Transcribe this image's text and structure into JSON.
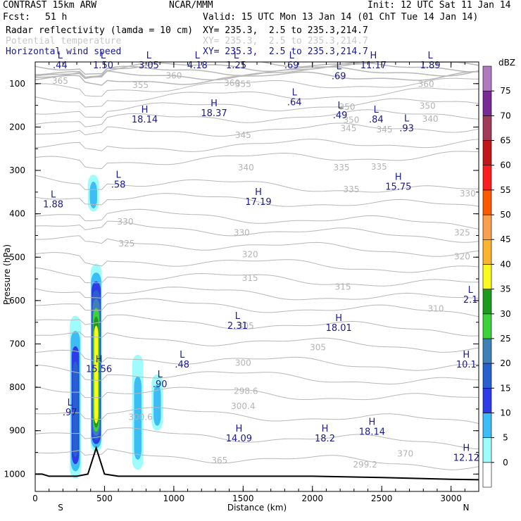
{
  "header": {
    "model": "CONTRAST 15km ARW",
    "org": "NCAR/MMM",
    "init": "Init: 12 UTC Sat 11 Jan 14",
    "fcst_label": "Fcst:",
    "fcst_value": "51 h",
    "valid": "Valid: 15 UTC Mon 13 Jan 14 (01 ChT Tue 14 Jan 14)",
    "fields": [
      {
        "name": "Radar reflectivity (lamda = 10 cm)",
        "xy": "XY= 235.3,  2.5 to 235.3,214.7",
        "color": "#000000"
      },
      {
        "name": "Potential temperature",
        "xy": "XY= 235.3,  2.5 to 235.3,214.7",
        "color": "#c8c8c8"
      },
      {
        "name": "Horizontal wind speed",
        "xy": "XY= 235.3,  2.5 to 235.3,214.7",
        "color": "#1a1a8c"
      }
    ]
  },
  "chart_data": {
    "type": "cross-section",
    "ylabel": "Pressure (hPa)",
    "xlabel": "Distance (km)",
    "xlim": [
      0,
      3200
    ],
    "ylim": [
      1040,
      50
    ],
    "x_ticks": [
      "0",
      "500",
      "1000",
      "1500",
      "2000",
      "2500",
      "3000"
    ],
    "y_ticks": [
      "100",
      "200",
      "300",
      "400",
      "500",
      "600",
      "700",
      "800",
      "900",
      "1000"
    ],
    "x_end_labels": {
      "left": "S",
      "right": "N"
    },
    "colorbar": {
      "unit": "dBZ",
      "levels": [
        "0",
        "5",
        "10",
        "15",
        "20",
        "25",
        "30",
        "35",
        "40",
        "45",
        "50",
        "55",
        "60",
        "65",
        "70",
        "75"
      ],
      "colors": [
        "#ffffff",
        "#9ffcfc",
        "#3cbdf5",
        "#2d3ce6",
        "#2860d0",
        "#4080b8",
        "#3cd23c",
        "#1e9b1e",
        "#fafa1e",
        "#fab432",
        "#f8a050",
        "#fc5a00",
        "#fa1e1e",
        "#c01818",
        "#a03c5a",
        "#7a2a96",
        "#b27abe"
      ]
    },
    "theta_contour_labels": [
      "365",
      "360",
      "360",
      "360",
      "355",
      "355",
      "350",
      "350",
      "350",
      "345",
      "345",
      "345",
      "340",
      "340",
      "335",
      "335",
      "335",
      "330",
      "330",
      "330",
      "325",
      "325",
      "320",
      "320",
      "315",
      "315",
      "310",
      "305",
      "305",
      "300",
      "298.6",
      "300.6",
      "300.4",
      "299.2",
      "370",
      "365"
    ],
    "wind_extrema": [
      {
        "type": "L",
        "value": ".44",
        "x": 180,
        "p": 55
      },
      {
        "type": "L",
        "value": "1.50",
        "x": 490,
        "p": 55
      },
      {
        "type": "L",
        "value": "3.05",
        "x": 820,
        "p": 55
      },
      {
        "type": "L",
        "value": "4.18",
        "x": 1170,
        "p": 55
      },
      {
        "type": "L",
        "value": "1.25",
        "x": 1450,
        "p": 55
      },
      {
        "type": "L",
        "value": ".69",
        "x": 1850,
        "p": 55
      },
      {
        "type": "L",
        "value": ".69",
        "x": 2190,
        "p": 80
      },
      {
        "type": "H",
        "value": "11.17",
        "x": 2440,
        "p": 55
      },
      {
        "type": "L",
        "value": "1.89",
        "x": 2850,
        "p": 55
      },
      {
        "type": "L",
        "value": ".64",
        "x": 1870,
        "p": 140
      },
      {
        "type": "L",
        "value": ".49",
        "x": 2200,
        "p": 170
      },
      {
        "type": "L",
        "value": ".84",
        "x": 2460,
        "p": 180
      },
      {
        "type": "L",
        "value": ".93",
        "x": 2680,
        "p": 200
      },
      {
        "type": "H",
        "value": "18.14",
        "x": 790,
        "p": 180
      },
      {
        "type": "H",
        "value": "18.37",
        "x": 1290,
        "p": 165
      },
      {
        "type": "L",
        "value": ".58",
        "x": 600,
        "p": 330
      },
      {
        "type": "L",
        "value": "1.88",
        "x": 130,
        "p": 375
      },
      {
        "type": "H",
        "value": "17.19",
        "x": 1610,
        "p": 370
      },
      {
        "type": "H",
        "value": "15.75",
        "x": 2620,
        "p": 335
      },
      {
        "type": "L",
        "value": "2.1",
        "x": 3140,
        "p": 595
      },
      {
        "type": "L",
        "value": "2.31",
        "x": 1460,
        "p": 655
      },
      {
        "type": "H",
        "value": "18.01",
        "x": 2190,
        "p": 660
      },
      {
        "type": "H",
        "value": "15.56",
        "x": 460,
        "p": 755
      },
      {
        "type": "L",
        "value": ".48",
        "x": 1060,
        "p": 745
      },
      {
        "type": "H",
        "value": "10.1",
        "x": 3110,
        "p": 745
      },
      {
        "type": "L",
        "value": ".90",
        "x": 900,
        "p": 790
      },
      {
        "type": "L",
        "value": ".97",
        "x": 250,
        "p": 855
      },
      {
        "type": "H",
        "value": "14.09",
        "x": 1470,
        "p": 915
      },
      {
        "type": "H",
        "value": "18.2",
        "x": 2090,
        "p": 915
      },
      {
        "type": "H",
        "value": "18.14",
        "x": 2430,
        "p": 900
      },
      {
        "type": "H",
        "value": "12.12",
        "x": 3110,
        "p": 960
      }
    ],
    "reflectivity_cells": [
      {
        "x": 290,
        "p_top": 635,
        "p_bot": 1010,
        "max_dbz": 20
      },
      {
        "x": 440,
        "p_top": 515,
        "p_bot": 950,
        "max_dbz": 40
      },
      {
        "x": 420,
        "p_top": 310,
        "p_bot": 395,
        "max_dbz": 10
      },
      {
        "x": 740,
        "p_top": 725,
        "p_bot": 990,
        "max_dbz": 10
      },
      {
        "x": 880,
        "p_top": 770,
        "p_bot": 900,
        "max_dbz": 10
      }
    ],
    "terrain": {
      "x": [
        0,
        50,
        100,
        200,
        300,
        380,
        420,
        440,
        460,
        500,
        600,
        800,
        1000,
        1500,
        2000,
        2500,
        3000,
        3200
      ],
      "p": [
        1000,
        1000,
        1005,
        1005,
        1005,
        1000,
        960,
        940,
        960,
        1000,
        1005,
        1005,
        1005,
        1005,
        1005,
        1008,
        1012,
        1013
      ]
    }
  }
}
